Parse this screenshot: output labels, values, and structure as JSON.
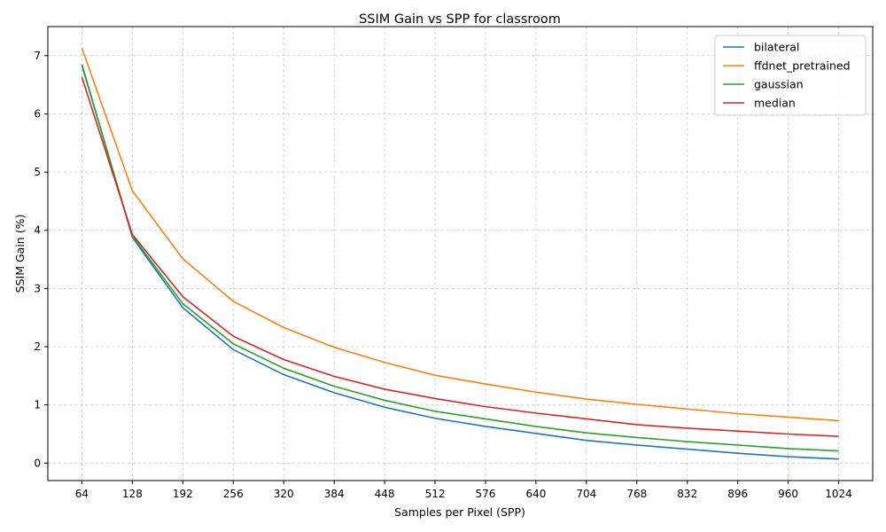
{
  "chart_data": {
    "type": "line",
    "title": "SSIM Gain vs SPP for classroom",
    "xlabel": "Samples per Pixel (SPP)",
    "ylabel": "SSIM Gain (%)",
    "x": [
      64,
      128,
      192,
      256,
      320,
      384,
      448,
      512,
      576,
      640,
      704,
      768,
      832,
      896,
      960,
      1024
    ],
    "xticks": [
      "64",
      "128",
      "192",
      "256",
      "320",
      "384",
      "448",
      "512",
      "576",
      "640",
      "704",
      "768",
      "832",
      "896",
      "960",
      "1024"
    ],
    "yticks": [
      "0",
      "1",
      "2",
      "3",
      "4",
      "5",
      "6",
      "7"
    ],
    "xlim": [
      20.8,
      1067.2
    ],
    "ylim": [
      -0.3,
      7.5
    ],
    "grid": true,
    "legend_position": "top-right",
    "series": [
      {
        "name": "bilateral",
        "color": "#1f77b4",
        "values": [
          6.85,
          3.88,
          2.67,
          1.95,
          1.52,
          1.21,
          0.96,
          0.77,
          0.63,
          0.51,
          0.39,
          0.31,
          0.24,
          0.17,
          0.11,
          0.07
        ]
      },
      {
        "name": "ffdnet_pretrained",
        "color": "#ff7f0e",
        "values": [
          7.13,
          4.68,
          3.51,
          2.78,
          2.33,
          1.99,
          1.73,
          1.51,
          1.36,
          1.22,
          1.1,
          1.01,
          0.93,
          0.85,
          0.79,
          0.73
        ]
      },
      {
        "name": "gaussian",
        "color": "#2ca02c",
        "values": [
          6.83,
          3.9,
          2.74,
          2.05,
          1.63,
          1.32,
          1.08,
          0.89,
          0.76,
          0.63,
          0.52,
          0.44,
          0.37,
          0.31,
          0.25,
          0.21
        ]
      },
      {
        "name": "median",
        "color": "#d62728",
        "values": [
          6.63,
          3.93,
          2.86,
          2.18,
          1.78,
          1.49,
          1.27,
          1.11,
          0.97,
          0.86,
          0.76,
          0.66,
          0.6,
          0.55,
          0.5,
          0.46
        ]
      }
    ]
  }
}
